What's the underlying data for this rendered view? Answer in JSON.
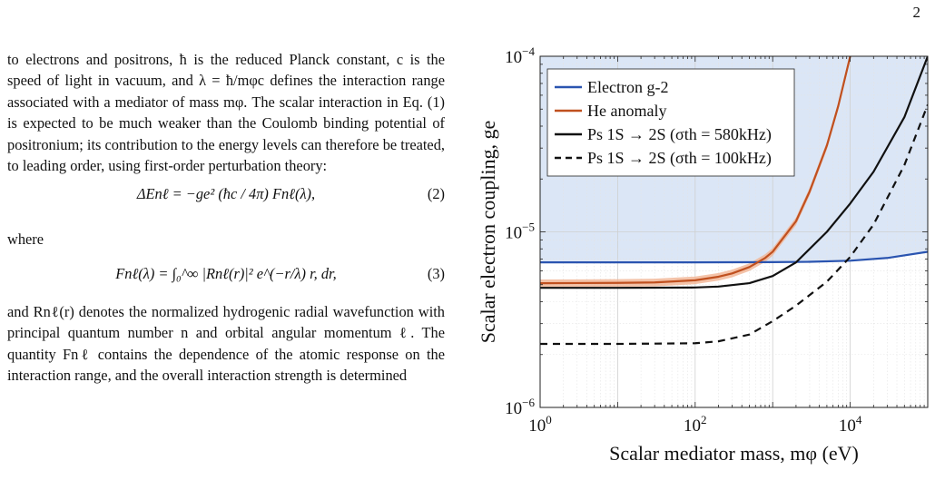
{
  "page_number": "2",
  "text": {
    "para1": "to electrons and positrons, ħ is the reduced Planck constant, c is the speed of light in vacuum, and λ = ħ/mφc defines the interaction range associated with a mediator of mass mφ. The scalar interaction in Eq. (1) is expected to be much weaker than the Coulomb binding potential of positronium; its contribution to the energy levels can therefore be treated, to leading order, using first-order perturbation theory:",
    "eq2": "ΔEnℓ = −ge² (ħc / 4π) Fnℓ(λ),",
    "eq2_label": "(2)",
    "where": "where",
    "eq3": "Fnℓ(λ) = ∫₀^∞ |Rnℓ(r)|² e^(−r/λ) r, dr,",
    "eq3_label": "(3)",
    "para2": "and Rnℓ(r) denotes the normalized hydrogenic radial wavefunction with principal quantum number n and orbital angular momentum ℓ. The quantity Fnℓ contains the dependence of the atomic response on the interaction range, and the overall interaction strength is determined"
  },
  "chart_data": {
    "type": "line",
    "x_scale": "log",
    "y_scale": "log",
    "xlim": [
      1,
      100000
    ],
    "ylim": [
      1e-06,
      0.0001
    ],
    "xlabel": "Scalar mediator mass, mφ (eV)",
    "ylabel": "Scalar electron coupling, ge",
    "x_ticks": [
      "10^0",
      "10^2",
      "10^4"
    ],
    "y_ticks": [
      "10^-6",
      "10^-5",
      "10^-4"
    ],
    "grid": true,
    "legend_position": "top-left",
    "excluded_region_color": "#dbe6f6",
    "series": [
      {
        "name": "Electron g-2",
        "color": "#2a54b0",
        "style": "solid",
        "x": [
          1,
          10,
          100,
          1000,
          3000,
          10000,
          30000,
          100000
        ],
        "y": [
          6.7e-06,
          6.7e-06,
          6.7e-06,
          6.72e-06,
          6.75e-06,
          6.85e-06,
          7.1e-06,
          7.7e-06
        ]
      },
      {
        "name": "He anomaly",
        "color": "#c0501f",
        "style": "solid",
        "x": [
          1,
          10,
          30,
          100,
          200,
          300,
          500,
          800,
          1000,
          2000,
          3000,
          5000,
          7000,
          10000
        ],
        "y": [
          5.1e-06,
          5.12e-06,
          5.15e-06,
          5.3e-06,
          5.55e-06,
          5.8e-06,
          6.3e-06,
          7.1e-06,
          7.7e-06,
          1.15e-05,
          1.7e-05,
          3.1e-05,
          5.2e-05,
          0.0001
        ]
      },
      {
        "name": "Ps 1S → 2S (σth = 580kHz)",
        "color": "#111111",
        "style": "solid",
        "x": [
          1,
          10,
          100,
          200,
          500,
          1000,
          2000,
          5000,
          10000,
          20000,
          50000,
          100000
        ],
        "y": [
          4.8e-06,
          4.8e-06,
          4.82e-06,
          4.88e-06,
          5.1e-06,
          5.6e-06,
          6.7e-06,
          1e-05,
          1.45e-05,
          2.2e-05,
          4.5e-05,
          0.0001
        ]
      },
      {
        "name": "Ps 1S → 2S (σth = 100kHz)",
        "color": "#111111",
        "style": "dashed",
        "x": [
          1,
          10,
          100,
          200,
          500,
          1000,
          2000,
          5000,
          10000,
          20000,
          50000,
          100000
        ],
        "y": [
          2.3e-06,
          2.3e-06,
          2.32e-06,
          2.38e-06,
          2.6e-06,
          3.1e-06,
          3.8e-06,
          5.2e-06,
          7.2e-06,
          1.1e-05,
          2.4e-05,
          5.3e-05
        ]
      }
    ]
  }
}
